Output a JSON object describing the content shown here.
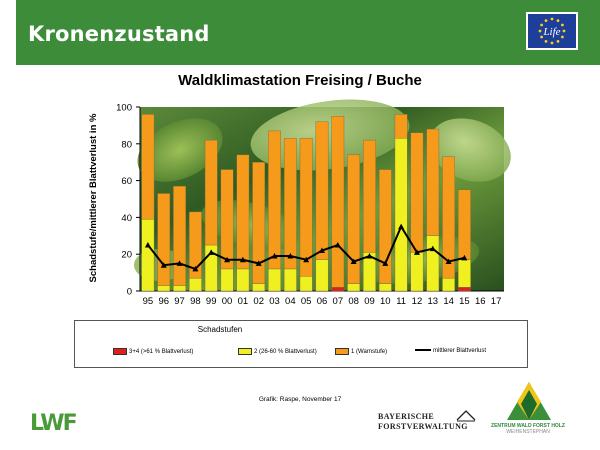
{
  "header": {
    "title": "Kronenzustand",
    "color": "#3c8c3a",
    "eu_label": "Life"
  },
  "chart_data": {
    "type": "bar",
    "stacked": true,
    "title": "Waldklimastation Freising / Buche",
    "xlabel": "",
    "ylabel": "Schadstufe/mittlerer Blattverlust in %",
    "ylim": [
      0,
      100
    ],
    "yticks": [
      "0",
      "20",
      "40",
      "60",
      "80",
      "100"
    ],
    "grid": false,
    "legend_title": "Schadstufen",
    "legend_position": "bottom",
    "categories": [
      "95",
      "96",
      "97",
      "98",
      "99",
      "00",
      "01",
      "02",
      "03",
      "04",
      "05",
      "06",
      "07",
      "08",
      "09",
      "10",
      "11",
      "12",
      "13",
      "14",
      "15",
      "16",
      "17"
    ],
    "series": [
      {
        "name": "3+4 (>61 % Blattverlust)",
        "kind": "bar",
        "color": "#e0201a",
        "values": [
          0,
          0,
          0,
          0,
          0,
          0,
          0,
          0,
          0,
          0,
          0,
          0,
          2,
          0,
          0,
          0,
          0,
          0,
          0,
          0,
          2,
          null,
          null
        ]
      },
      {
        "name": "2 (26-60 % Blattverlust)",
        "kind": "bar",
        "color": "#f0f020",
        "values": [
          39,
          3,
          3,
          7,
          25,
          12,
          12,
          4,
          12,
          12,
          8,
          17,
          0,
          4,
          21,
          4,
          83,
          21,
          30,
          7,
          15,
          null,
          null
        ]
      },
      {
        "name": "1 (Warnstufe)",
        "kind": "bar",
        "color": "#f59a1a",
        "values": [
          57,
          50,
          54,
          36,
          57,
          54,
          62,
          66,
          75,
          71,
          75,
          75,
          93,
          70,
          61,
          62,
          13,
          65,
          58,
          66,
          38,
          null,
          null
        ]
      },
      {
        "name": "mittlerer Blattverlust",
        "kind": "line",
        "color": "#000000",
        "values": [
          25,
          14,
          15,
          12,
          21,
          17,
          17,
          15,
          19,
          19,
          17,
          22,
          25,
          16,
          19,
          15,
          35,
          21,
          23,
          16,
          18,
          null,
          null
        ]
      }
    ]
  },
  "source": "Grafik: Raspe, November 17",
  "logos": {
    "lwf": "LWF",
    "bayern": [
      "BAYERISCHE",
      "FORSTVERWALTUNG"
    ],
    "zentrum": "ZENTRUM WALD FORST HOLZ",
    "zentrum_sub": "WEIHENSTEPHAN"
  }
}
